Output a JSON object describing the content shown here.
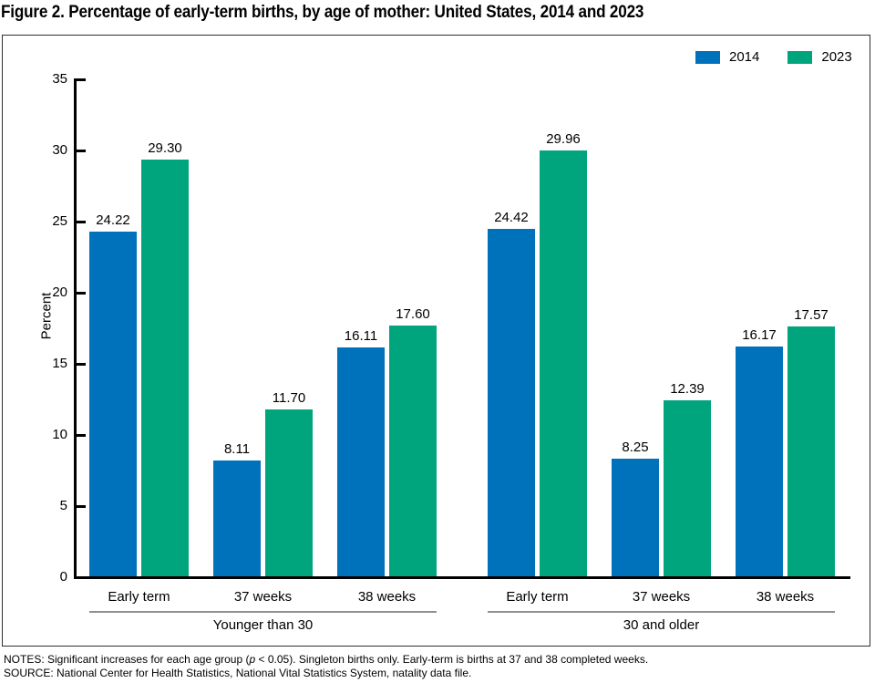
{
  "chart_data": {
    "type": "bar",
    "title": "Figure 2. Percentage of early-term births, by age of mother: United States, 2014 and 2023",
    "ylabel": "Percent",
    "ylim": [
      0,
      35
    ],
    "yticks": [
      0,
      5,
      10,
      15,
      20,
      25,
      30,
      35
    ],
    "categories": [
      "Early term",
      "37 weeks",
      "38 weeks"
    ],
    "legend": [
      {
        "name": "2014",
        "color": "#0072BC"
      },
      {
        "name": "2023",
        "color": "#00A57E"
      }
    ],
    "legend_position": "top-right",
    "grid": false,
    "groups": [
      {
        "label": "Younger than 30",
        "series": [
          {
            "name": "2014",
            "values": [
              24.22,
              8.11,
              16.11
            ]
          },
          {
            "name": "2023",
            "values": [
              29.3,
              11.7,
              17.6
            ]
          }
        ]
      },
      {
        "label": "30 and older",
        "series": [
          {
            "name": "2014",
            "values": [
              24.42,
              8.25,
              16.17
            ]
          },
          {
            "name": "2023",
            "values": [
              29.96,
              12.39,
              17.57
            ]
          }
        ]
      }
    ]
  },
  "footnotes": {
    "notes_prefix": "NOTES: Significant increases for each age group (",
    "notes_italic": "p",
    "notes_suffix": " < 0.05). Singleton births only. Early-term is births at 37 and 38 completed weeks.",
    "source": "SOURCE: National Center for Health Statistics, National Vital Statistics System, natality data file."
  }
}
